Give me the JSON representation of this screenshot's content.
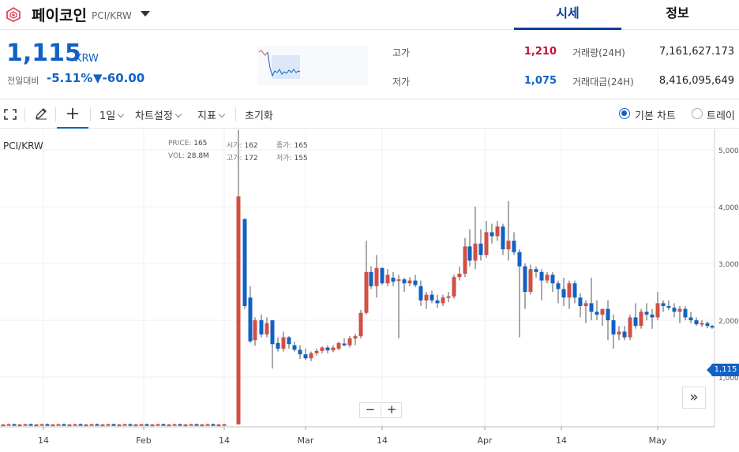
{
  "header": {
    "coin_name": "페이코인",
    "coin_pair": "PCI/KRW",
    "tabs": [
      {
        "label": "시세",
        "active": true
      },
      {
        "label": "정보",
        "active": false
      }
    ]
  },
  "summary": {
    "price": "1,115",
    "unit": "KRW",
    "change_label": "전일대비",
    "change_pct": "-5.11%",
    "change_amt": "▼-60.00",
    "high_label": "고가",
    "high_value": "1,210",
    "low_label": "저가",
    "low_value": "1,075",
    "volume_label": "거래량(24H)",
    "volume_value": "7,161,627.173",
    "amount_label": "거래대금(24H)",
    "amount_value": "8,416,095,649"
  },
  "toolbar": {
    "fullscreen_icon": "fullscreen-icon",
    "draw_icon": "pencil-icon",
    "crosshair_icon": "plus-icon",
    "interval_label": "1일",
    "settings_label": "차트설정",
    "indicator_label": "지표",
    "reset_label": "초기화",
    "basic_chart_label": "기본 차트",
    "trading_view_label": "트레이"
  },
  "chart_data": {
    "type": "candlestick",
    "title": "PCI/KRW",
    "legend": {
      "price_label": "PRICE:",
      "price": "165",
      "vol_label": "VOL:",
      "vol": "28.8M",
      "open_label": "시가:",
      "open": "162",
      "high_label": "고가:",
      "high": "172",
      "close_label": "종가:",
      "close": "165",
      "low_label": "저가:",
      "low": "155"
    },
    "y_ticks": [
      "5,000",
      "4,000",
      "3,000",
      "2,000",
      "1,000"
    ],
    "x_ticks": [
      "14",
      "Feb",
      "14",
      "Mar",
      "14",
      "Apr",
      "14",
      "May"
    ],
    "current_price_tag": "1,115",
    "colors": {
      "up": "#d24f45",
      "down": "#1261c4",
      "grid": "#eceff3"
    }
  },
  "controls": {
    "zoom_out": "−",
    "zoom_in": "+",
    "fast_forward": "»"
  }
}
